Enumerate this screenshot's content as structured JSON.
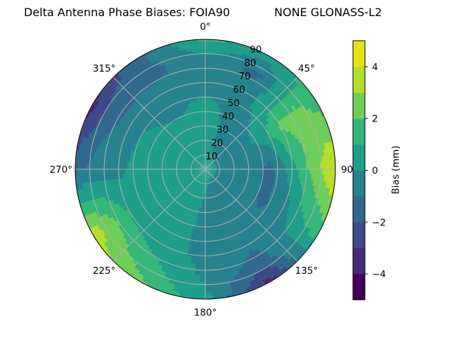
{
  "chart_data": {
    "type": "heatmap",
    "subtype": "polar-filled-contour",
    "title_left": "Delta Antenna Phase Biases: FOIA90",
    "title_right": "NONE GLONASS-L2",
    "angular_direction": "clockwise",
    "zero_location": "top",
    "angular_tick_labels": [
      "0°",
      "45°",
      "90°",
      "135°",
      "180°",
      "225°",
      "270°",
      "315°"
    ],
    "radial_tick_labels": [
      "10",
      "20",
      "30",
      "40",
      "50",
      "60",
      "70",
      "80",
      "90"
    ],
    "radial_range": [
      0,
      90
    ],
    "grid": true,
    "colormap": "viridis",
    "levels": [
      -5,
      -4,
      -3,
      -2,
      -1,
      0,
      1,
      2,
      3,
      4,
      5
    ],
    "level_colors": [
      "#440154",
      "#482878",
      "#3e4989",
      "#31688e",
      "#26828e",
      "#1f9e89",
      "#35b779",
      "#6ece58",
      "#b5de2b",
      "#e5e419"
    ],
    "colorbar": {
      "label": "Bias (mm)",
      "tick_values": [
        4,
        2,
        0,
        -2,
        -4
      ],
      "tick_labels": [
        "4",
        "2",
        "0",
        "−2",
        "−4"
      ],
      "range": [
        -5,
        5
      ]
    },
    "grid_azimuths": [
      0,
      30,
      60,
      90,
      120,
      150,
      180,
      210,
      240,
      270,
      300,
      330
    ],
    "grid_radii": [
      0,
      15,
      30,
      45,
      60,
      75,
      90
    ],
    "values": [
      [
        0.3,
        0.4,
        0.5,
        0.3,
        -0.5,
        -0.5,
        1.3
      ],
      [
        0.3,
        -0.2,
        -0.3,
        -0.4,
        -0.5,
        -1.3,
        0.5
      ],
      [
        0.3,
        -0.3,
        -0.3,
        0.5,
        2.2,
        2.6,
        1.5
      ],
      [
        0.3,
        -0.3,
        -0.6,
        -1.3,
        0.5,
        2.5,
        4.2
      ],
      [
        0.3,
        -0.3,
        -0.5,
        -1.2,
        -0.5,
        0.8,
        1.5
      ],
      [
        0.3,
        -0.3,
        -0.4,
        -0.4,
        -0.8,
        -1.5,
        -3.5
      ],
      [
        0.3,
        0.0,
        -0.2,
        -0.3,
        -0.3,
        -0.2,
        0.3
      ],
      [
        0.3,
        0.5,
        0.5,
        0.5,
        0.5,
        1.3,
        2.2
      ],
      [
        0.3,
        0.5,
        0.5,
        0.6,
        1.0,
        2.5,
        3.6
      ],
      [
        0.3,
        0.5,
        0.5,
        0.5,
        -0.3,
        -0.6,
        -1.3
      ],
      [
        0.3,
        0.5,
        0.4,
        0.2,
        -0.5,
        -1.5,
        -3.5
      ],
      [
        0.3,
        0.5,
        0.4,
        -0.3,
        -0.5,
        -1.3,
        -1.2
      ]
    ]
  }
}
